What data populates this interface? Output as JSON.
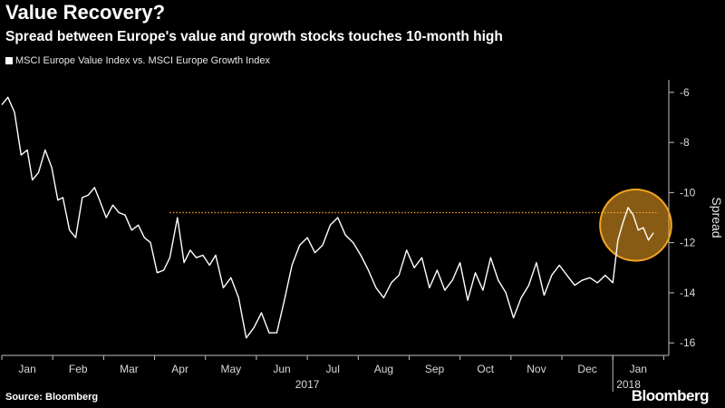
{
  "header": {
    "title": "Value Recovery?",
    "subtitle": "Spread between Europe's value and growth stocks touches 10-month high"
  },
  "footer": {
    "source": "Source: Bloomberg",
    "brand": "Bloomberg"
  },
  "colors": {
    "line": "#ffffff",
    "highlight": "#f5a623",
    "axis": "#bfbfbf"
  },
  "chart_data": {
    "type": "line",
    "title": "Value Recovery?",
    "subtitle": "Spread between Europe's value and growth stocks touches 10-month high",
    "legend": [
      "MSCI Europe Value Index vs. MSCI Europe Growth Index"
    ],
    "legend_position": "top-left",
    "ylabel": "Spread",
    "ylim": [
      -16.5,
      -5.5
    ],
    "yticks": [
      -6,
      -8,
      -10,
      -12,
      -14,
      -16
    ],
    "month_labels": [
      "Jan",
      "Feb",
      "Mar",
      "Apr",
      "May",
      "Jun",
      "Jul",
      "Aug",
      "Sep",
      "Oct",
      "Nov",
      "Dec",
      "Jan"
    ],
    "year_labels": [
      "2017",
      "2018"
    ],
    "x_unit": "months since Jan 2017",
    "xlim": [
      0,
      13.1
    ],
    "reference_line": {
      "y": -10.8,
      "from_x": 3.3,
      "to_x": 12.9,
      "style": "dotted"
    },
    "highlight_circle": {
      "x": 12.45,
      "y": -11.3,
      "radius_units": 0.7
    },
    "series": [
      {
        "name": "MSCI Europe Value Index vs. MSCI Europe Growth Index",
        "x": [
          0.0,
          0.12,
          0.25,
          0.38,
          0.5,
          0.6,
          0.72,
          0.85,
          0.98,
          1.1,
          1.2,
          1.33,
          1.45,
          1.58,
          1.7,
          1.82,
          1.92,
          2.05,
          2.18,
          2.3,
          2.42,
          2.55,
          2.68,
          2.8,
          2.92,
          3.05,
          3.18,
          3.3,
          3.45,
          3.58,
          3.7,
          3.82,
          3.95,
          4.08,
          4.2,
          4.35,
          4.5,
          4.65,
          4.8,
          4.95,
          5.1,
          5.25,
          5.4,
          5.55,
          5.7,
          5.85,
          6.0,
          6.15,
          6.3,
          6.45,
          6.6,
          6.75,
          6.9,
          7.05,
          7.2,
          7.35,
          7.5,
          7.65,
          7.8,
          7.95,
          8.1,
          8.25,
          8.4,
          8.55,
          8.7,
          8.85,
          9.0,
          9.15,
          9.3,
          9.45,
          9.6,
          9.75,
          9.9,
          10.05,
          10.2,
          10.35,
          10.5,
          10.65,
          10.8,
          10.95,
          11.1,
          11.25,
          11.4,
          11.55,
          11.7,
          11.85,
          12.0,
          12.1,
          12.2,
          12.3,
          12.4,
          12.5,
          12.6,
          12.7,
          12.8
        ],
        "values": [
          -6.5,
          -6.2,
          -6.8,
          -8.5,
          -8.3,
          -9.5,
          -9.2,
          -8.3,
          -9.0,
          -10.3,
          -10.2,
          -11.5,
          -11.8,
          -10.2,
          -10.1,
          -9.8,
          -10.3,
          -11.0,
          -10.5,
          -10.8,
          -10.9,
          -11.5,
          -11.3,
          -11.8,
          -12.0,
          -13.2,
          -13.1,
          -12.6,
          -11.0,
          -12.8,
          -12.3,
          -12.6,
          -12.5,
          -12.9,
          -12.5,
          -13.8,
          -13.4,
          -14.2,
          -15.8,
          -15.4,
          -14.8,
          -15.6,
          -15.6,
          -14.3,
          -12.9,
          -12.1,
          -11.8,
          -12.4,
          -12.1,
          -11.3,
          -11.0,
          -11.7,
          -12.0,
          -12.5,
          -13.1,
          -13.8,
          -14.2,
          -13.6,
          -13.3,
          -12.3,
          -13.0,
          -12.6,
          -13.8,
          -13.1,
          -13.9,
          -13.5,
          -12.8,
          -14.3,
          -13.2,
          -13.9,
          -12.6,
          -13.5,
          -14.0,
          -15.0,
          -14.2,
          -13.7,
          -12.8,
          -14.1,
          -13.3,
          -12.9,
          -13.3,
          -13.7,
          -13.5,
          -13.4,
          -13.6,
          -13.3,
          -13.6,
          -11.9,
          -11.2,
          -10.6,
          -10.9,
          -11.5,
          -11.4,
          -11.9,
          -11.6
        ]
      }
    ]
  }
}
